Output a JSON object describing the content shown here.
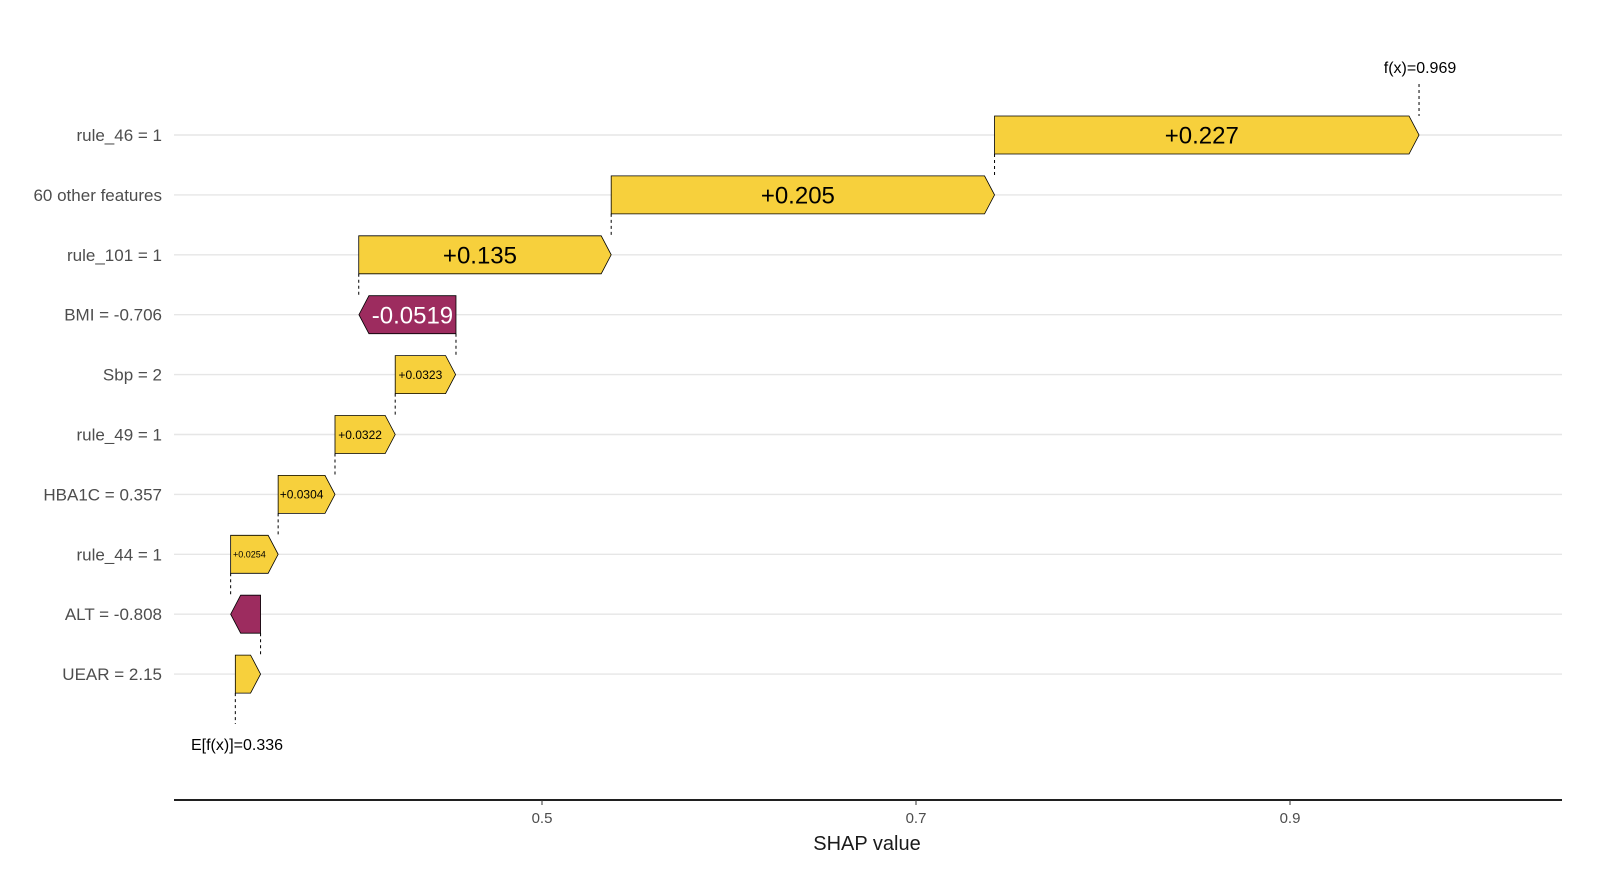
{
  "chart_data": {
    "type": "bar",
    "subtype": "waterfall",
    "xlabel": "SHAP value",
    "xticks": [
      0.5,
      0.7,
      0.9
    ],
    "xtick_labels": [
      "0.5",
      "0.7",
      "0.9"
    ],
    "xlim": [
      0.3,
      1.04
    ],
    "grid": "horizontal-major",
    "base_value": 0.336,
    "base_label": "E[f(x)]=0.336",
    "final_value": 0.969,
    "final_label": "f(x)=0.969",
    "features": [
      {
        "label": "rule_46 = 1",
        "value": 0.227,
        "value_label": "+0.227",
        "start": 0.742
      },
      {
        "label": "60 other features",
        "value": 0.205,
        "value_label": "+0.205",
        "start": 0.537
      },
      {
        "label": "rule_101 = 1",
        "value": 0.135,
        "value_label": "+0.135",
        "start": 0.402
      },
      {
        "label": "BMI = -0.706",
        "value": -0.0519,
        "value_label": "-0.0519",
        "start": 0.454
      },
      {
        "label": "Sbp = 2",
        "value": 0.0323,
        "value_label": "+0.0323",
        "start": 0.4215
      },
      {
        "label": "rule_49 = 1",
        "value": 0.0322,
        "value_label": "+0.0322",
        "start": 0.3893
      },
      {
        "label": "HBA1C = 0.357",
        "value": 0.0304,
        "value_label": "+0.0304",
        "start": 0.3589
      },
      {
        "label": "rule_44 = 1",
        "value": 0.0254,
        "value_label": "+0.0254",
        "start": 0.3335
      },
      {
        "label": "ALT = -0.808",
        "value": -0.016,
        "value_label": "",
        "start": 0.3495
      },
      {
        "label": "UEAR = 2.15",
        "value": 0.0135,
        "value_label": "",
        "start": 0.336
      }
    ]
  },
  "colors": {
    "positive": "#F7D03C",
    "negative": "#9D2C5F",
    "grid": "#e6e6e6",
    "axis": "#000000"
  }
}
